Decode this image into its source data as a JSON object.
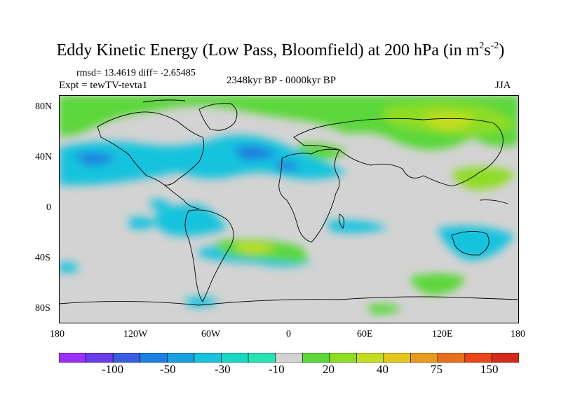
{
  "title": {
    "main": "Eddy Kinetic Energy (Low Pass, Bloomfield) at 200 hPa (in m",
    "sup1": "2",
    "mid": "s",
    "sup2": "-2",
    "end": ")"
  },
  "stats": "rmsd= 13.4619  diff= -2.65485",
  "experiment": "Expt = tewTV-tevta1",
  "period": "2348kyr BP - 0000kyr BP",
  "season": "JJA",
  "lat_ticks": [
    "80N",
    "40N",
    "0",
    "40S",
    "80S"
  ],
  "lon_ticks": [
    "180",
    "120W",
    "60W",
    "0",
    "60E",
    "120E",
    "180"
  ],
  "colorbar": {
    "labels": [
      "-100",
      "-50",
      "-30",
      "-10",
      "20",
      "40",
      "75",
      "150"
    ],
    "colors": [
      "#9b30ff",
      "#6a3ee6",
      "#3a5ee0",
      "#1e7fe0",
      "#199fe0",
      "#19c3dd",
      "#19d8c3",
      "#28e2b4",
      "#d3d3d3",
      "#5bd73a",
      "#8fdc25",
      "#c4dd21",
      "#e2c61c",
      "#e89a1c",
      "#e8701c",
      "#e8471c",
      "#d22b1c"
    ]
  }
}
